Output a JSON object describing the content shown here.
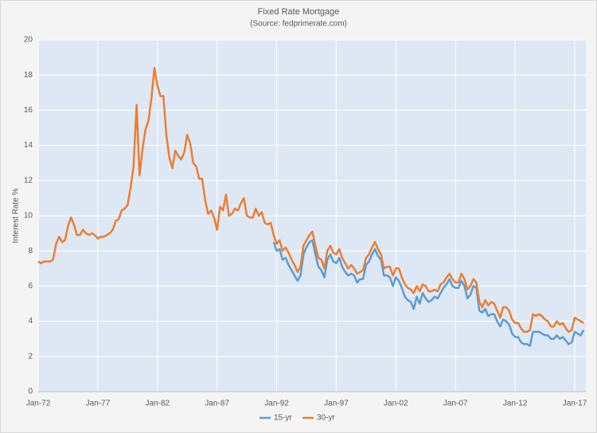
{
  "chart_data": {
    "type": "line",
    "title": "Fixed Rate Mortgage",
    "subtitle": "(Source:  fedprimerate.com)",
    "y_label": "Interest Rate %",
    "categories": [
      "Jan-72",
      null,
      null,
      null,
      null,
      null,
      null,
      null,
      null,
      null,
      null,
      null,
      null,
      null,
      null,
      null,
      null,
      null,
      null,
      null,
      "Jan-77",
      null,
      null,
      null,
      null,
      null,
      null,
      null,
      null,
      null,
      null,
      null,
      null,
      null,
      null,
      null,
      null,
      null,
      null,
      null,
      "Jan-82",
      null,
      null,
      null,
      null,
      null,
      null,
      null,
      null,
      null,
      null,
      null,
      null,
      null,
      null,
      null,
      null,
      null,
      null,
      null,
      "Jan-87",
      null,
      null,
      null,
      null,
      null,
      null,
      null,
      null,
      null,
      null,
      null,
      null,
      null,
      null,
      null,
      null,
      null,
      null,
      null,
      "Jan-92",
      null,
      null,
      null,
      null,
      null,
      null,
      null,
      null,
      null,
      null,
      null,
      null,
      null,
      null,
      null,
      null,
      null,
      null,
      null,
      "Jan-97",
      null,
      null,
      null,
      null,
      null,
      null,
      null,
      null,
      null,
      null,
      null,
      null,
      null,
      null,
      null,
      null,
      null,
      null,
      null,
      "Jan-02",
      null,
      null,
      null,
      null,
      null,
      null,
      null,
      null,
      null,
      null,
      null,
      null,
      null,
      null,
      null,
      null,
      null,
      null,
      null,
      "Jan-07",
      null,
      null,
      null,
      null,
      null,
      null,
      null,
      null,
      null,
      null,
      null,
      null,
      null,
      null,
      null,
      null,
      null,
      null,
      null,
      "Jan-12",
      null,
      null,
      null,
      null,
      null,
      null,
      null,
      null,
      null,
      null,
      null,
      null,
      null,
      null,
      null,
      null,
      null,
      null,
      null,
      "Jan-17",
      null,
      null,
      null
    ],
    "series": [
      {
        "name": "15-yr",
        "color": "#5b9bd5",
        "values": [
          null,
          null,
          null,
          null,
          null,
          null,
          null,
          null,
          null,
          null,
          null,
          null,
          null,
          null,
          null,
          null,
          null,
          null,
          null,
          null,
          null,
          null,
          null,
          null,
          null,
          null,
          null,
          null,
          null,
          null,
          null,
          null,
          null,
          null,
          null,
          null,
          null,
          null,
          null,
          null,
          null,
          null,
          null,
          null,
          null,
          null,
          null,
          null,
          null,
          null,
          null,
          null,
          null,
          null,
          null,
          null,
          null,
          null,
          null,
          null,
          null,
          null,
          null,
          null,
          null,
          null,
          null,
          null,
          null,
          null,
          null,
          null,
          null,
          null,
          null,
          null,
          null,
          null,
          null,
          8.5,
          8.0,
          8.1,
          7.5,
          7.6,
          7.2,
          6.9,
          6.6,
          6.3,
          6.6,
          7.8,
          8.2,
          8.5,
          8.6,
          7.8,
          7.1,
          6.9,
          6.5,
          7.5,
          7.8,
          7.4,
          7.3,
          7.6,
          7.1,
          6.8,
          6.6,
          6.7,
          6.6,
          6.2,
          6.4,
          6.4,
          7.2,
          7.4,
          7.8,
          8.1,
          7.7,
          7.5,
          6.6,
          6.6,
          6.5,
          6.0,
          6.5,
          6.3,
          5.9,
          5.4,
          5.2,
          5.1,
          4.7,
          5.4,
          5.0,
          5.6,
          5.3,
          5.1,
          5.2,
          5.4,
          5.3,
          5.6,
          5.9,
          6.1,
          6.4,
          6.0,
          5.9,
          5.9,
          6.3,
          6.0,
          5.3,
          5.5,
          6.0,
          5.9,
          4.6,
          4.5,
          4.7,
          4.3,
          4.4,
          4.4,
          4.0,
          3.7,
          4.1,
          4.0,
          3.8,
          3.3,
          3.1,
          3.1,
          2.8,
          2.7,
          2.7,
          2.6,
          3.4,
          3.4,
          3.4,
          3.3,
          3.2,
          3.2,
          3.0,
          3.0,
          3.2,
          3.0,
          3.1,
          2.9,
          2.7,
          2.8,
          3.4,
          3.3,
          3.2,
          3.5
        ]
      },
      {
        "name": "30-yr",
        "color": "#ed7d31",
        "values": [
          7.4,
          7.3,
          7.4,
          7.4,
          7.4,
          7.5,
          8.4,
          8.8,
          8.5,
          8.6,
          9.4,
          9.9,
          9.5,
          8.9,
          8.9,
          9.2,
          9.0,
          8.9,
          9.0,
          8.9,
          8.7,
          8.8,
          8.8,
          8.9,
          9.0,
          9.2,
          9.7,
          9.8,
          10.3,
          10.4,
          10.6,
          11.6,
          12.8,
          16.3,
          12.3,
          13.8,
          14.9,
          15.4,
          16.7,
          18.4,
          17.4,
          16.8,
          16.8,
          14.6,
          13.3,
          12.7,
          13.7,
          13.4,
          13.2,
          13.6,
          14.6,
          14.1,
          13.0,
          12.8,
          12.1,
          12.1,
          10.9,
          10.1,
          10.3,
          9.9,
          9.2,
          10.5,
          10.3,
          11.2,
          10.0,
          10.1,
          10.4,
          10.3,
          10.7,
          11.0,
          10.0,
          9.9,
          9.9,
          10.4,
          10.0,
          10.2,
          9.6,
          9.5,
          9.6,
          8.9,
          8.4,
          8.6,
          8.0,
          8.2,
          7.9,
          7.5,
          7.2,
          6.8,
          7.1,
          8.3,
          8.6,
          8.9,
          9.1,
          8.3,
          7.6,
          7.5,
          7.0,
          8.0,
          8.3,
          7.9,
          7.8,
          8.1,
          7.6,
          7.3,
          7.0,
          7.2,
          7.0,
          6.7,
          6.8,
          6.9,
          7.6,
          7.8,
          8.2,
          8.5,
          8.1,
          7.8,
          7.0,
          7.1,
          7.1,
          6.6,
          7.0,
          7.0,
          6.5,
          6.1,
          5.9,
          5.8,
          5.6,
          6.0,
          5.7,
          6.1,
          6.0,
          5.7,
          5.7,
          5.8,
          5.7,
          6.1,
          6.2,
          6.5,
          6.7,
          6.4,
          6.2,
          6.2,
          6.7,
          6.4,
          5.8,
          6.0,
          6.4,
          6.2,
          5.1,
          4.8,
          5.2,
          4.9,
          5.1,
          5.0,
          4.6,
          4.2,
          4.8,
          4.8,
          4.6,
          4.1,
          3.9,
          3.9,
          3.6,
          3.4,
          3.4,
          3.5,
          4.4,
          4.3,
          4.4,
          4.3,
          4.1,
          4.0,
          3.7,
          3.7,
          4.0,
          3.8,
          3.9,
          3.6,
          3.4,
          3.5,
          4.2,
          4.1,
          4.0,
          3.9
        ]
      }
    ],
    "ylim": [
      0,
      20
    ],
    "yticks": [
      0,
      2,
      4,
      6,
      8,
      10,
      12,
      14,
      16,
      18,
      20
    ],
    "grid": true,
    "legend": "bottom"
  }
}
